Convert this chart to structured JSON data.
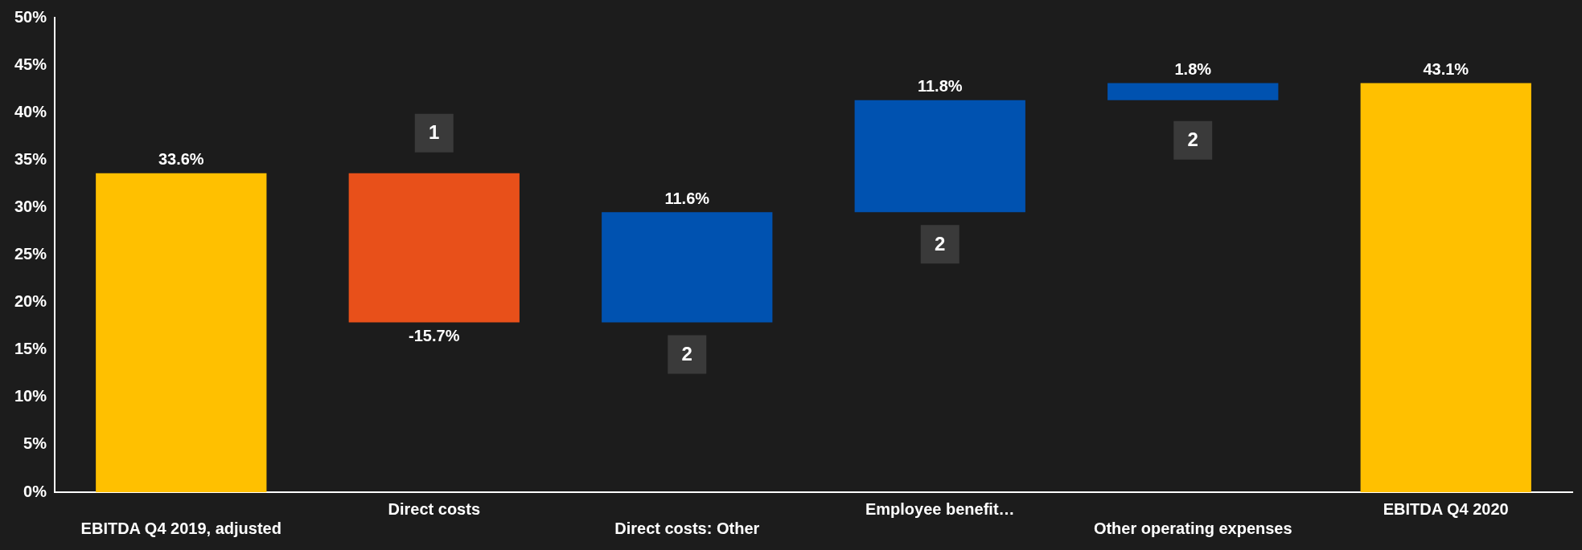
{
  "chart_data": {
    "type": "bar",
    "categories": [
      "EBITDA Q4 2019, adjusted",
      "Direct costs",
      "Direct costs: Other",
      "Employee benefit…",
      "Other operating expenses",
      "EBITDA Q4 2020"
    ],
    "values": [
      33.6,
      -15.7,
      11.6,
      11.8,
      1.8,
      43.1
    ],
    "base": [
      0,
      33.6,
      17.9,
      29.5,
      41.3,
      0
    ],
    "colors": [
      "#ffc000",
      "#e8501a",
      "#0052b0",
      "#0052b0",
      "#0052b0",
      "#ffc000"
    ],
    "value_labels": [
      "33.6%",
      "-15.7%",
      "11.6%",
      "11.8%",
      "1.8%",
      "43.1%"
    ],
    "ylim": [
      0,
      50
    ],
    "yticks": [
      {
        "value": 0,
        "label": "0%"
      },
      {
        "value": 5,
        "label": "5%"
      },
      {
        "value": 10,
        "label": "10%"
      },
      {
        "value": 15,
        "label": "15%"
      },
      {
        "value": 20,
        "label": "20%"
      },
      {
        "value": 25,
        "label": "25%"
      },
      {
        "value": 30,
        "label": "30%"
      },
      {
        "value": 35,
        "label": "35%"
      },
      {
        "value": 40,
        "label": "40%"
      },
      {
        "value": 45,
        "label": "45%"
      },
      {
        "value": 50,
        "label": "50%"
      }
    ],
    "annotations": [
      "1",
      "2",
      "2",
      "2"
    ],
    "grid": false,
    "legend": false
  }
}
